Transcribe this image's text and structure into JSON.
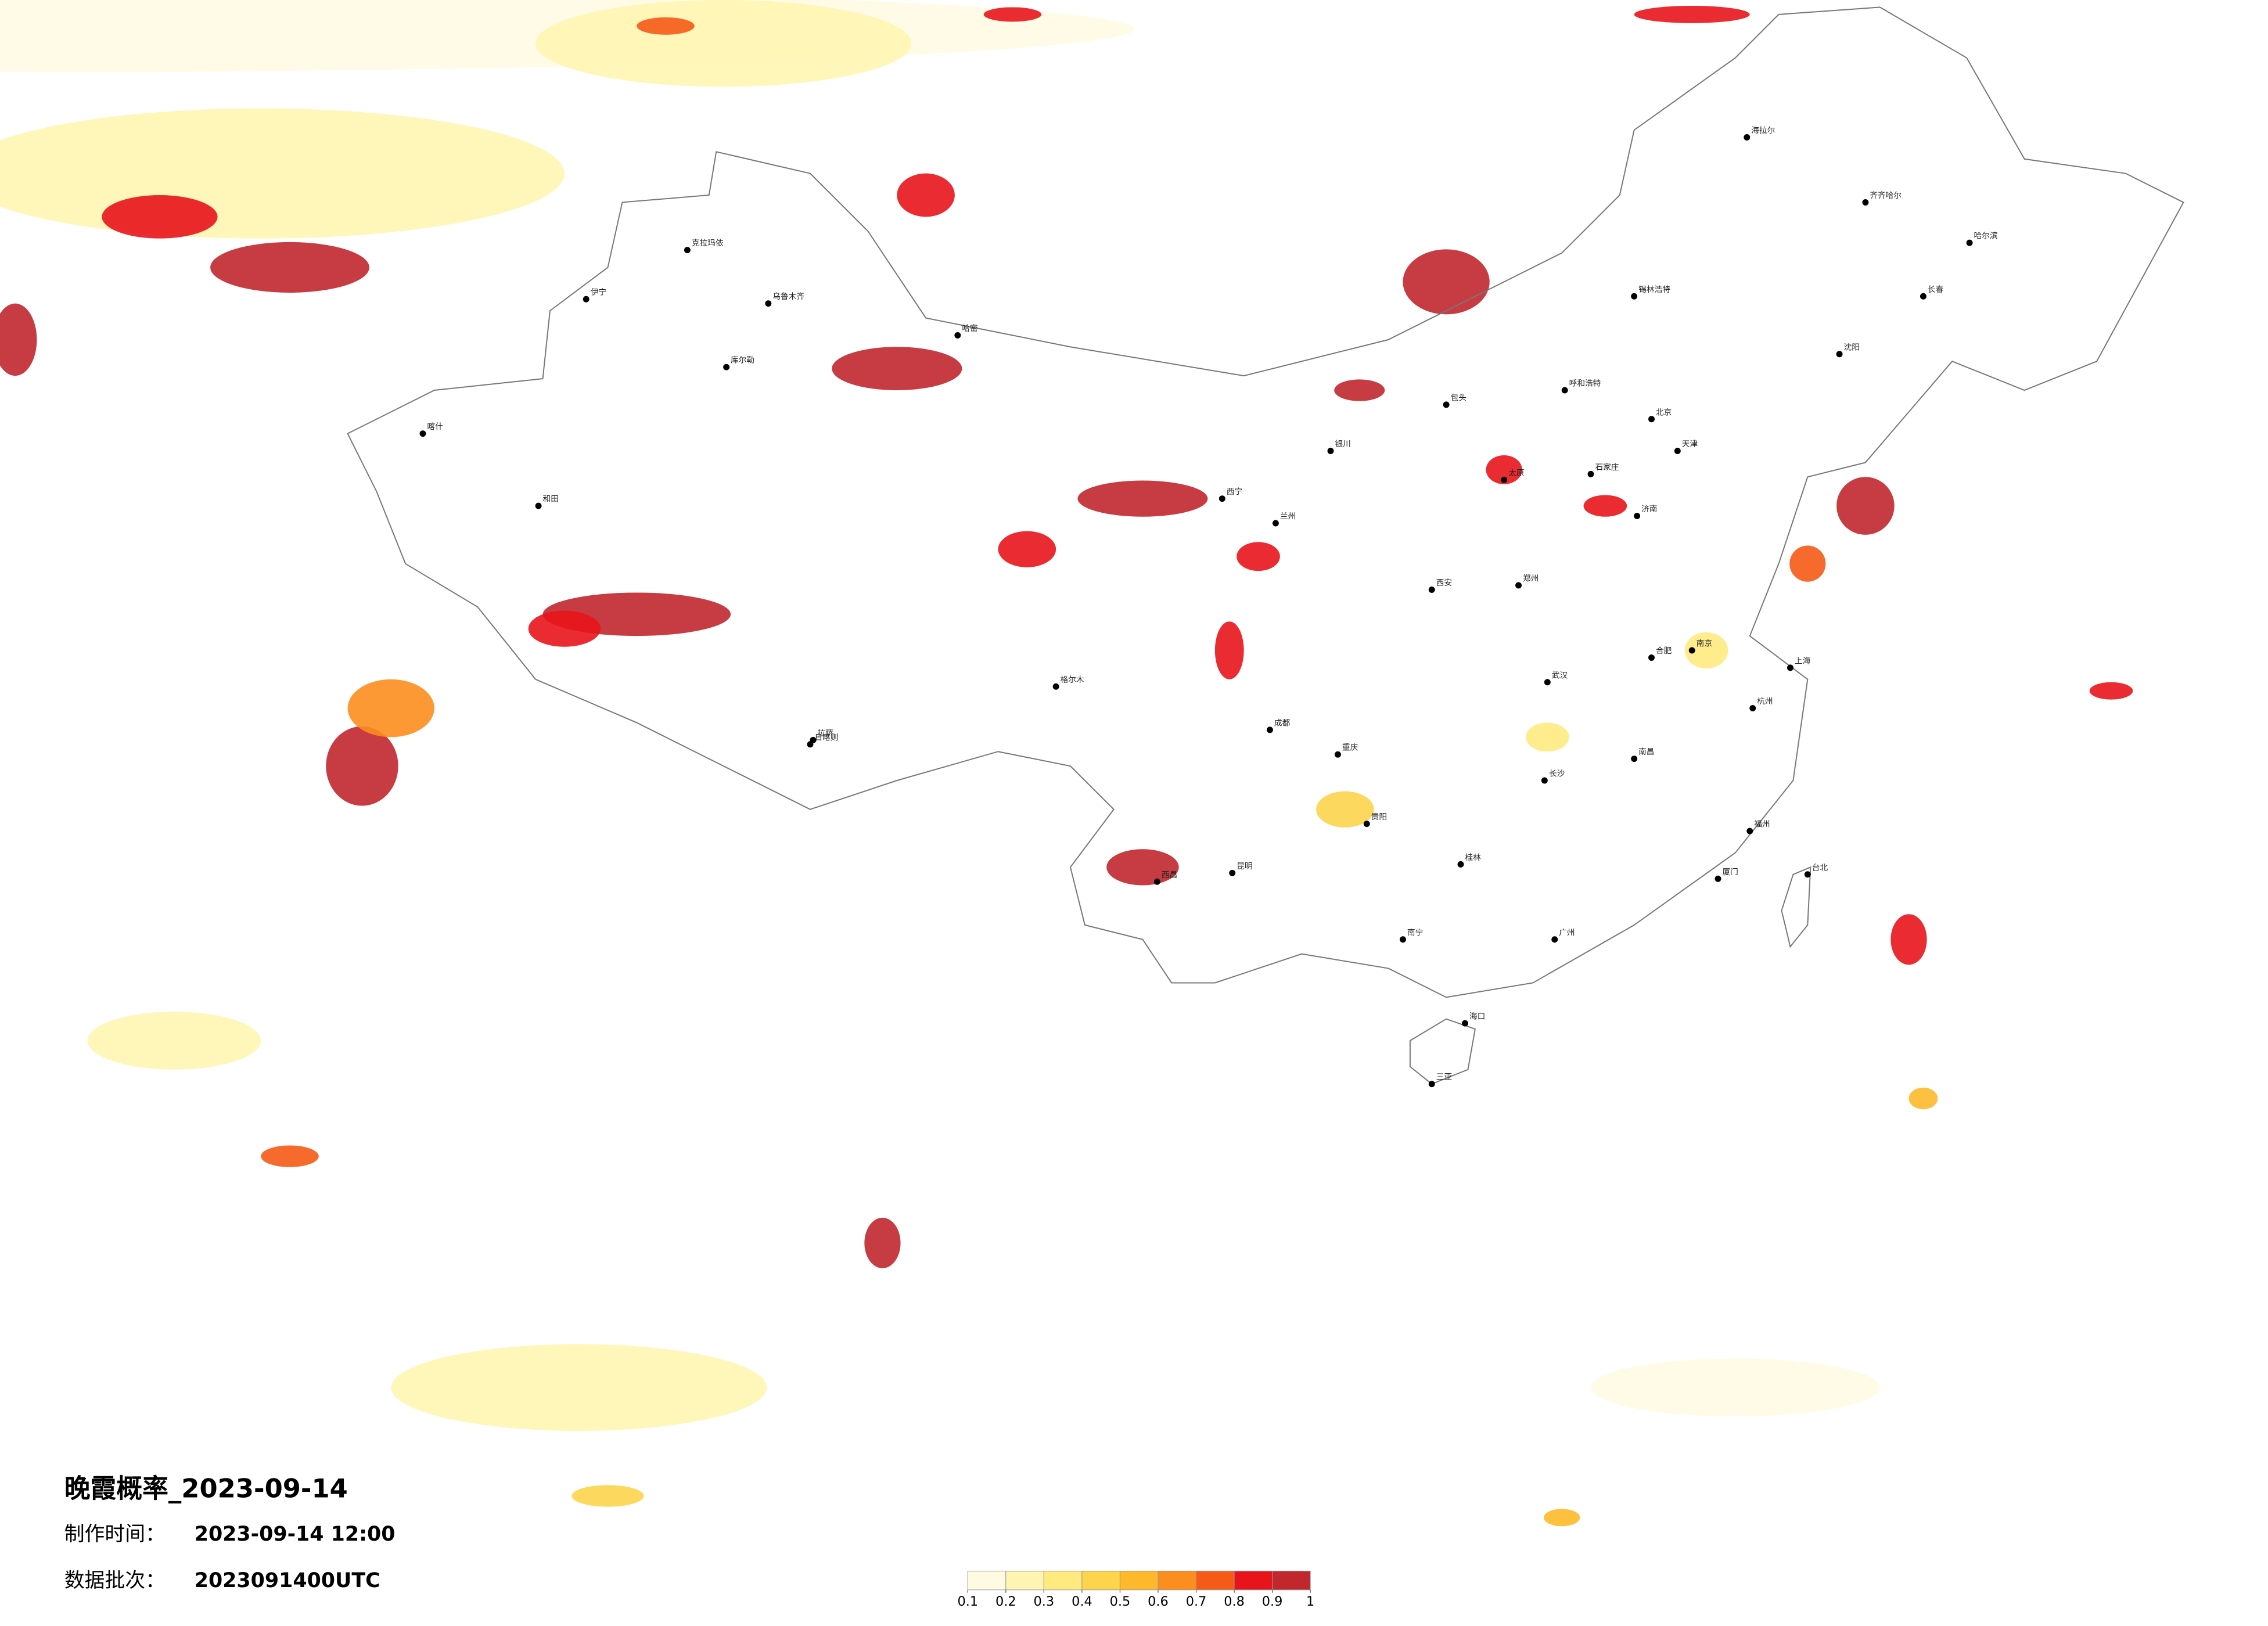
{
  "title": "晚霞概率_2023-09-14",
  "made_time": {
    "label": "制作时间：",
    "value": "2023-09-14 12:00"
  },
  "batch": {
    "label": "数据批次：",
    "value": "2023091400UTC"
  },
  "legend": {
    "ticks": [
      0.1,
      0.2,
      0.3,
      0.4,
      0.5,
      0.6,
      0.7,
      0.8,
      0.9,
      1
    ],
    "colors": [
      "#fffbe3",
      "#fff5b3",
      "#ffea80",
      "#fdd44c",
      "#fdb92b",
      "#fc8e1f",
      "#f65a17",
      "#e8141b",
      "#c1272d"
    ]
  },
  "cities": [
    "北京",
    "天津",
    "上海",
    "广州",
    "成都",
    "重庆",
    "武汉",
    "西安",
    "拉萨",
    "乌鲁木齐",
    "哈尔滨",
    "长春",
    "沈阳",
    "呼和浩特",
    "兰州",
    "西宁",
    "银川",
    "昆明",
    "贵阳",
    "南宁",
    "海口",
    "台北",
    "和田",
    "喀什",
    "伊宁",
    "克拉玛依",
    "库尔勒",
    "哈密",
    "长沙",
    "南昌",
    "福州",
    "杭州",
    "南京",
    "济南",
    "郑州",
    "太原",
    "石家庄",
    "合肥",
    "海拉尔",
    "齐齐哈尔",
    "包头",
    "格尔木",
    "日喀则",
    "西昌",
    "桂林",
    "厦门",
    "三亚",
    "锡林浩特"
  ]
}
